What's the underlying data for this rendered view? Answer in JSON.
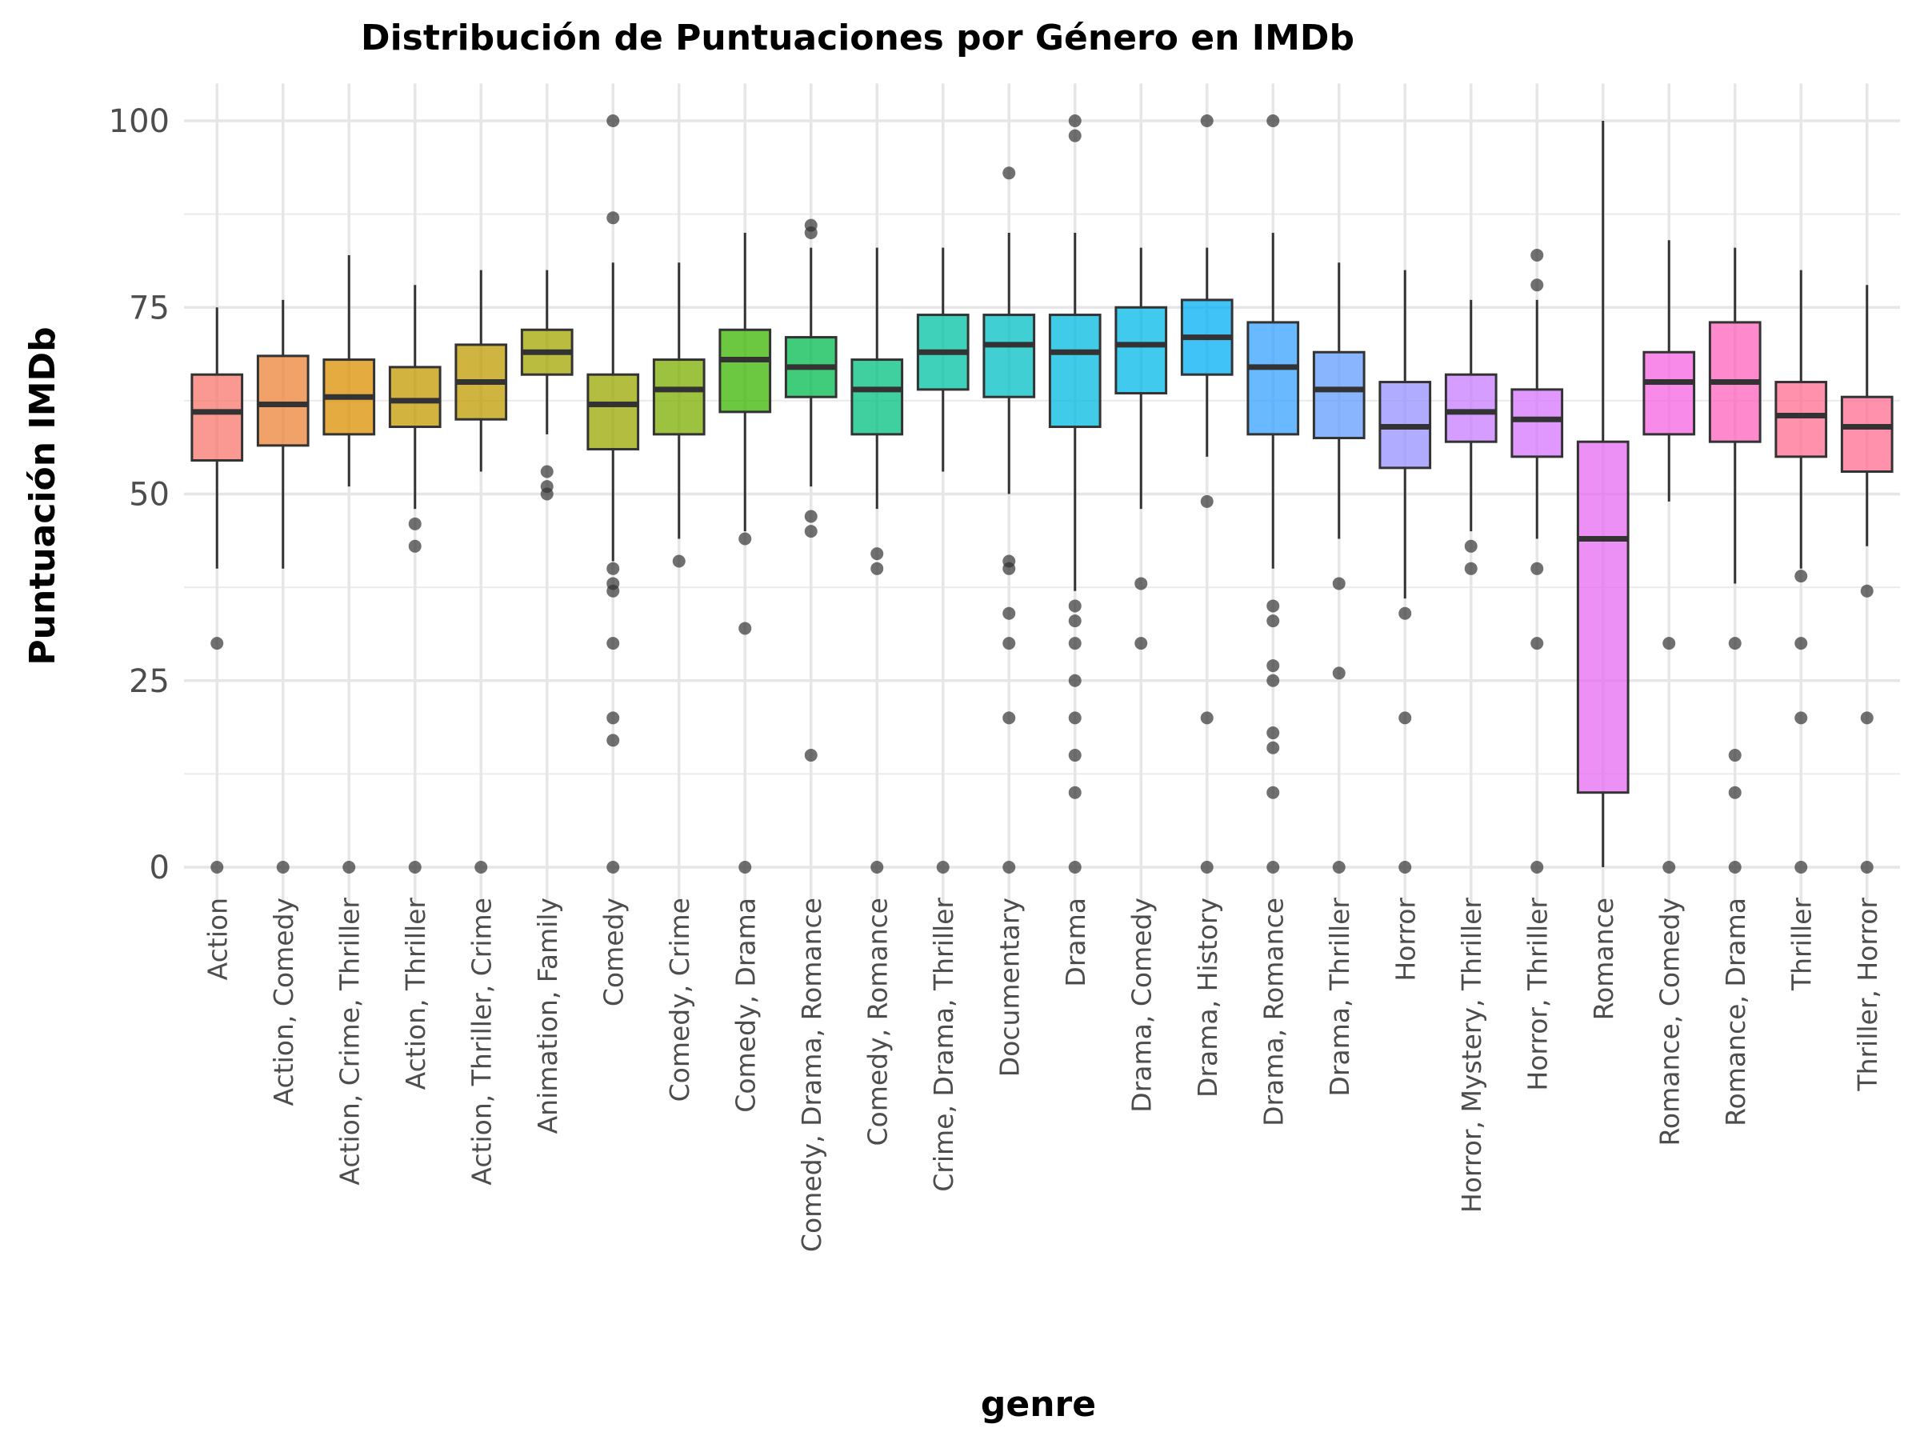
{
  "chart_data": {
    "type": "box",
    "title": "Distribución de Puntuaciones por Género en IMDb",
    "xlabel": "genre",
    "ylabel": "Puntuación IMDb",
    "ylim": [
      -5,
      105
    ],
    "yticks": [
      0,
      25,
      50,
      75,
      100
    ],
    "grid": true,
    "legend": "none",
    "categories": [
      "Action",
      "Action, Comedy",
      "Action, Crime, Thriller",
      "Action, Thriller",
      "Action, Thriller, Crime",
      "Animation, Family",
      "Comedy",
      "Comedy, Crime",
      "Comedy, Drama",
      "Comedy, Drama, Romance",
      "Comedy, Romance",
      "Crime, Drama, Thriller",
      "Documentary",
      "Drama",
      "Drama, Comedy",
      "Drama, History",
      "Drama, Romance",
      "Drama, Thriller",
      "Horror",
      "Horror, Mystery, Thriller",
      "Horror, Thriller",
      "Romance",
      "Romance, Comedy",
      "Romance, Drama",
      "Thriller",
      "Thriller, Horror"
    ],
    "boxes": [
      {
        "min": 40,
        "q1": 54.5,
        "median": 61,
        "q3": 66,
        "max": 75,
        "outliers": [
          30,
          0
        ],
        "color": "#F8766D"
      },
      {
        "min": 40,
        "q1": 56.5,
        "median": 62,
        "q3": 68.5,
        "max": 76,
        "outliers": [
          0
        ],
        "color": "#EB8335"
      },
      {
        "min": 51,
        "q1": 58,
        "median": 63,
        "q3": 68,
        "max": 82,
        "outliers": [
          0
        ],
        "color": "#DA8F00"
      },
      {
        "min": 48,
        "q1": 59,
        "median": 62.5,
        "q3": 67,
        "max": 78,
        "outliers": [
          46,
          43,
          0
        ],
        "color": "#C49A00"
      },
      {
        "min": 53,
        "q1": 60,
        "median": 65,
        "q3": 70,
        "max": 80,
        "outliers": [
          0
        ],
        "color": "#C09B00"
      },
      {
        "min": 58,
        "q1": 66,
        "median": 69,
        "q3": 72,
        "max": 80,
        "outliers": [
          53,
          51,
          50
        ],
        "color": "#A3A500"
      },
      {
        "min": 41,
        "q1": 56,
        "median": 62,
        "q3": 66,
        "max": 81,
        "outliers": [
          100,
          87,
          40,
          38,
          37,
          30,
          20,
          17,
          0
        ],
        "color": "#99A800"
      },
      {
        "min": 44,
        "q1": 58,
        "median": 64,
        "q3": 68,
        "max": 81,
        "outliers": [
          41
        ],
        "color": "#7CAE00"
      },
      {
        "min": 45,
        "q1": 61,
        "median": 68,
        "q3": 72,
        "max": 85,
        "outliers": [
          44,
          32,
          0
        ],
        "color": "#39B600"
      },
      {
        "min": 51,
        "q1": 63,
        "median": 67,
        "q3": 71,
        "max": 83,
        "outliers": [
          86,
          85,
          47,
          45,
          15
        ],
        "color": "#00BB4E"
      },
      {
        "min": 48,
        "q1": 58,
        "median": 64,
        "q3": 68,
        "max": 83,
        "outliers": [
          42,
          40,
          0
        ],
        "color": "#00BF7D"
      },
      {
        "min": 53,
        "q1": 64,
        "median": 69,
        "q3": 74,
        "max": 83,
        "outliers": [
          0
        ],
        "color": "#00C1A3"
      },
      {
        "min": 50,
        "q1": 63,
        "median": 70,
        "q3": 74,
        "max": 85,
        "outliers": [
          93,
          41,
          40,
          34,
          30,
          20,
          0
        ],
        "color": "#00BFC4"
      },
      {
        "min": 37,
        "q1": 59,
        "median": 69,
        "q3": 74,
        "max": 85,
        "outliers": [
          100,
          98,
          35,
          33,
          30,
          25,
          20,
          15,
          10,
          0
        ],
        "color": "#00BAE0"
      },
      {
        "min": 48,
        "q1": 63.5,
        "median": 70,
        "q3": 75,
        "max": 83,
        "outliers": [
          38,
          30
        ],
        "color": "#00B8E7"
      },
      {
        "min": 55,
        "q1": 66,
        "median": 71,
        "q3": 76,
        "max": 83,
        "outliers": [
          100,
          49,
          20,
          0
        ],
        "color": "#00B0F6"
      },
      {
        "min": 40,
        "q1": 58,
        "median": 67,
        "q3": 73,
        "max": 85,
        "outliers": [
          100,
          35,
          33,
          27,
          25,
          18,
          16,
          10,
          0
        ],
        "color": "#35A2FF"
      },
      {
        "min": 44,
        "q1": 57.5,
        "median": 64,
        "q3": 69,
        "max": 81,
        "outliers": [
          38,
          26,
          0
        ],
        "color": "#619CFF"
      },
      {
        "min": 36,
        "q1": 53.5,
        "median": 59,
        "q3": 65,
        "max": 80,
        "outliers": [
          34,
          20,
          0
        ],
        "color": "#9590FF"
      },
      {
        "min": 45,
        "q1": 57,
        "median": 61,
        "q3": 66,
        "max": 76,
        "outliers": [
          43,
          40
        ],
        "color": "#C77CFF"
      },
      {
        "min": 44,
        "q1": 55,
        "median": 60,
        "q3": 64,
        "max": 76,
        "outliers": [
          82,
          78,
          40,
          30,
          0
        ],
        "color": "#D575FE"
      },
      {
        "min": 0,
        "q1": 10,
        "median": 44,
        "q3": 57,
        "max": 100,
        "outliers": [],
        "color": "#E76BF3"
      },
      {
        "min": 49,
        "q1": 58,
        "median": 65,
        "q3": 69,
        "max": 84,
        "outliers": [
          30,
          0
        ],
        "color": "#F564E3"
      },
      {
        "min": 38,
        "q1": 57,
        "median": 65,
        "q3": 73,
        "max": 83,
        "outliers": [
          30,
          15,
          10,
          0
        ],
        "color": "#FF62BC"
      },
      {
        "min": 40,
        "q1": 55,
        "median": 60.5,
        "q3": 65,
        "max": 80,
        "outliers": [
          39,
          30,
          20,
          0
        ],
        "color": "#FF6C91"
      },
      {
        "min": 43,
        "q1": 53,
        "median": 59,
        "q3": 63,
        "max": 78,
        "outliers": [
          37,
          20,
          0
        ],
        "color": "#FF6C91"
      }
    ]
  }
}
